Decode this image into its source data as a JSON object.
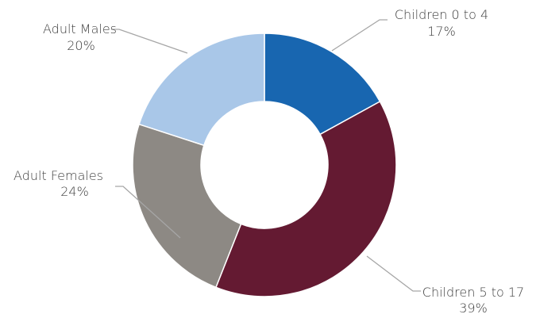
{
  "chart_data": {
    "type": "pie",
    "donut": true,
    "slices": [
      {
        "name": "Children  0 to 4",
        "percent_label": "17%",
        "value": 17,
        "color": "#1866b0"
      },
      {
        "name": "Children 5 to 17",
        "percent_label": "39%",
        "value": 39,
        "color": "#641a32"
      },
      {
        "name": "Adult Females",
        "percent_label": "24%",
        "value": 24,
        "color": "#8d8984"
      },
      {
        "name": "Adult Males",
        "percent_label": "20%",
        "value": 20,
        "color": "#a9c7e8"
      }
    ],
    "legend": "none",
    "data_labels": "outside with leader lines"
  }
}
